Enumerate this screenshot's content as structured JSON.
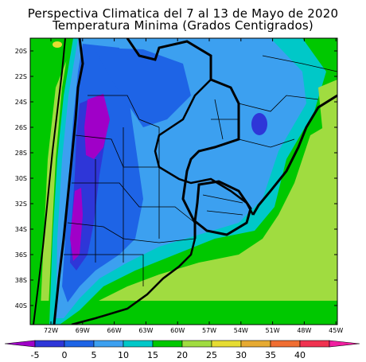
{
  "title": {
    "line1": "Perspectiva Climatica del 7 al 13 de Mayo de 2020",
    "line2": "Temperatura Minima (Grados Centigrados)"
  },
  "map": {
    "lat_labels": [
      "20S",
      "22S",
      "24S",
      "26S",
      "28S",
      "30S",
      "32S",
      "34S",
      "36S",
      "38S",
      "40S"
    ],
    "lon_labels": [
      "72W",
      "69W",
      "66W",
      "63W",
      "60W",
      "57W",
      "54W",
      "51W",
      "48W",
      "45W"
    ],
    "shading_colors": {
      "lt_0": "#2e36d8",
      "below_0": "#a000c8",
      "0_5": "#1e64e6",
      "5_10": "#3ca0f0",
      "10_15": "#00c8c8",
      "15_20": "#00c800",
      "20_25": "#a0dc40",
      "25_30": "#e6dc32",
      "30_35": "#e6aa32"
    }
  },
  "colorbar": {
    "labels": [
      "-5",
      "0",
      "5",
      "10",
      "15",
      "20",
      "25",
      "30",
      "35",
      "40"
    ],
    "colors": [
      "#a000c8",
      "#2e36d8",
      "#1e64e6",
      "#3ca0f0",
      "#00c8c8",
      "#00c800",
      "#a0dc40",
      "#e6dc32",
      "#e6aa32",
      "#f06e32",
      "#f03250",
      "#f01ea0"
    ]
  }
}
